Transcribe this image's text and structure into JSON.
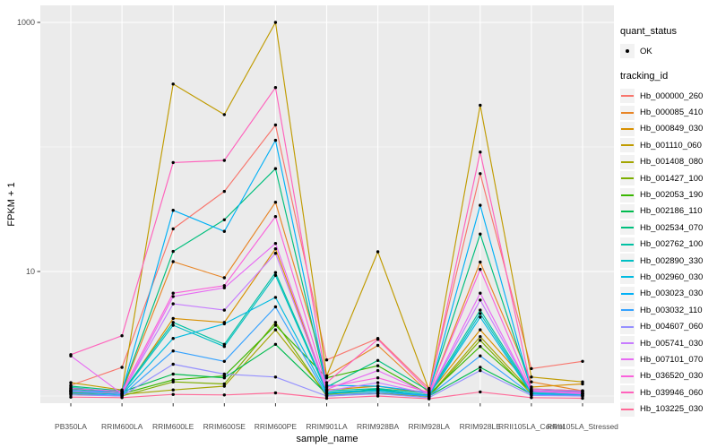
{
  "legend": {
    "quant_status": {
      "title": "quant_status",
      "ok_label": "OK"
    },
    "tracking_id": {
      "title": "tracking_id"
    }
  },
  "chart_data": {
    "type": "line",
    "title": "",
    "xlabel": "sample_name",
    "ylabel": "FPKM + 1",
    "y_scale": "log10",
    "legend_position": "right",
    "grid": "on",
    "panel_bg": "#EBEBEB",
    "grid_color": "#FFFFFF",
    "tick_color": "#333333",
    "tick_label_color": "#4D4D4D",
    "point_color": "#000000",
    "y_ticks": [
      {
        "label": "1000",
        "value": 1000
      },
      {
        "label": "10",
        "value": 10
      }
    ],
    "y_minor_gridlines": [
      1,
      100
    ],
    "ylim_log": [
      0.88,
      1380
    ],
    "categories": [
      "PB350LA",
      "RRIM600LA",
      "RRIM600LE",
      "RRIM600SE",
      "RRIM600PE",
      "RRIM901LA",
      "RRIM928BA",
      "RRIM928LA",
      "RRIM928LE",
      "RRII105LA_Control",
      "RRII105LA_Stressed"
    ],
    "series": [
      {
        "name": "Hb_000000_260",
        "color": "#F8766D",
        "values": [
          1.22,
          1.7,
          22,
          44,
          150,
          1.95,
          2.9,
          1.15,
          61,
          1.66,
          1.9
        ]
      },
      {
        "name": "Hb_000085_410",
        "color": "#E88526",
        "values": [
          1.1,
          1.08,
          12,
          8.9,
          36,
          1.45,
          2.55,
          1.06,
          11.9,
          1.3,
          1.1
        ]
      },
      {
        "name": "Hb_000849_030",
        "color": "#D89000",
        "values": [
          1.06,
          1.04,
          4.2,
          3.9,
          15.2,
          1.12,
          1.2,
          1.04,
          3.4,
          1.18,
          1.25
        ]
      },
      {
        "name": "Hb_001110_060",
        "color": "#C09B00",
        "values": [
          1.28,
          1.12,
          320,
          182,
          1000,
          1.45,
          14.4,
          1.12,
          216,
          1.42,
          1.3
        ]
      },
      {
        "name": "Hb_001408_080",
        "color": "#A3A500",
        "values": [
          1.08,
          1.03,
          1.12,
          1.2,
          3.4,
          1.03,
          1.1,
          1.0,
          3.0,
          1.08,
          1.04
        ]
      },
      {
        "name": "Hb_001427_100",
        "color": "#7CAE00",
        "values": [
          1.04,
          1.0,
          1.3,
          1.25,
          3.9,
          1.0,
          1.05,
          0.99,
          2.8,
          1.04,
          1.0
        ]
      },
      {
        "name": "Hb_002053_190",
        "color": "#39B600",
        "values": [
          1.1,
          1.04,
          1.35,
          1.45,
          3.7,
          1.4,
          1.75,
          1.03,
          2.5,
          1.09,
          1.04
        ]
      },
      {
        "name": "Hb_002186_110",
        "color": "#00BB4E",
        "values": [
          1.14,
          1.08,
          1.5,
          1.4,
          2.6,
          1.04,
          1.14,
          1.0,
          1.7,
          1.04,
          1.01
        ]
      },
      {
        "name": "Hb_002534_070",
        "color": "#00BF7D",
        "values": [
          1.2,
          1.1,
          14.5,
          26,
          67,
          1.18,
          1.93,
          1.1,
          20,
          1.14,
          1.1
        ]
      },
      {
        "name": "Hb_002762_100",
        "color": "#00C1A3",
        "values": [
          1.17,
          1.07,
          3.9,
          2.6,
          9.8,
          1.1,
          1.15,
          1.05,
          4.9,
          1.1,
          1.07
        ]
      },
      {
        "name": "Hb_002890_330",
        "color": "#00BFC4",
        "values": [
          1.12,
          1.05,
          3.7,
          2.5,
          9.3,
          1.07,
          1.12,
          1.02,
          4.6,
          1.07,
          1.05
        ]
      },
      {
        "name": "Hb_002960_030",
        "color": "#00BAE0",
        "values": [
          1.08,
          1.03,
          2.9,
          3.8,
          6.2,
          1.05,
          1.1,
          1.01,
          4.3,
          1.05,
          1.03
        ]
      },
      {
        "name": "Hb_003023_030",
        "color": "#00B0F6",
        "values": [
          1.1,
          1.09,
          31,
          21,
          113,
          1.22,
          1.2,
          1.07,
          34,
          1.11,
          1.09
        ]
      },
      {
        "name": "Hb_003032_110",
        "color": "#35A2FF",
        "values": [
          1.05,
          1.01,
          2.3,
          1.9,
          5.2,
          1.01,
          1.07,
          1.0,
          2.1,
          1.03,
          1.01
        ]
      },
      {
        "name": "Hb_004607_060",
        "color": "#9590FF",
        "values": [
          1.02,
          1.0,
          1.8,
          1.5,
          1.42,
          1.0,
          1.04,
          0.97,
          1.6,
          1.01,
          1.0
        ]
      },
      {
        "name": "Hb_005741_030",
        "color": "#C77CFF",
        "values": [
          1.1,
          1.05,
          5.5,
          4.9,
          14.0,
          1.1,
          1.28,
          1.04,
          5.9,
          1.09,
          1.05
        ]
      },
      {
        "name": "Hb_007101_070",
        "color": "#E76BF3",
        "values": [
          2.1,
          1.04,
          6.3,
          7.4,
          16.8,
          1.13,
          1.6,
          1.04,
          6.7,
          1.09,
          1.04
        ]
      },
      {
        "name": "Hb_036520_030",
        "color": "#FA62DB",
        "values": [
          1.15,
          1.09,
          6.7,
          7.7,
          27.6,
          1.18,
          1.4,
          1.07,
          10.4,
          1.11,
          1.07
        ]
      },
      {
        "name": "Hb_039946_060",
        "color": "#FF62BC",
        "values": [
          2.15,
          3.05,
          75,
          78,
          300,
          1.28,
          2.85,
          1.1,
          91,
          1.14,
          1.1
        ]
      },
      {
        "name": "Hb_103225_030",
        "color": "#FF6A98",
        "values": [
          0.98,
          0.97,
          1.03,
          1.02,
          1.06,
          0.96,
          1.0,
          0.95,
          1.08,
          0.97,
          0.96
        ]
      }
    ]
  }
}
